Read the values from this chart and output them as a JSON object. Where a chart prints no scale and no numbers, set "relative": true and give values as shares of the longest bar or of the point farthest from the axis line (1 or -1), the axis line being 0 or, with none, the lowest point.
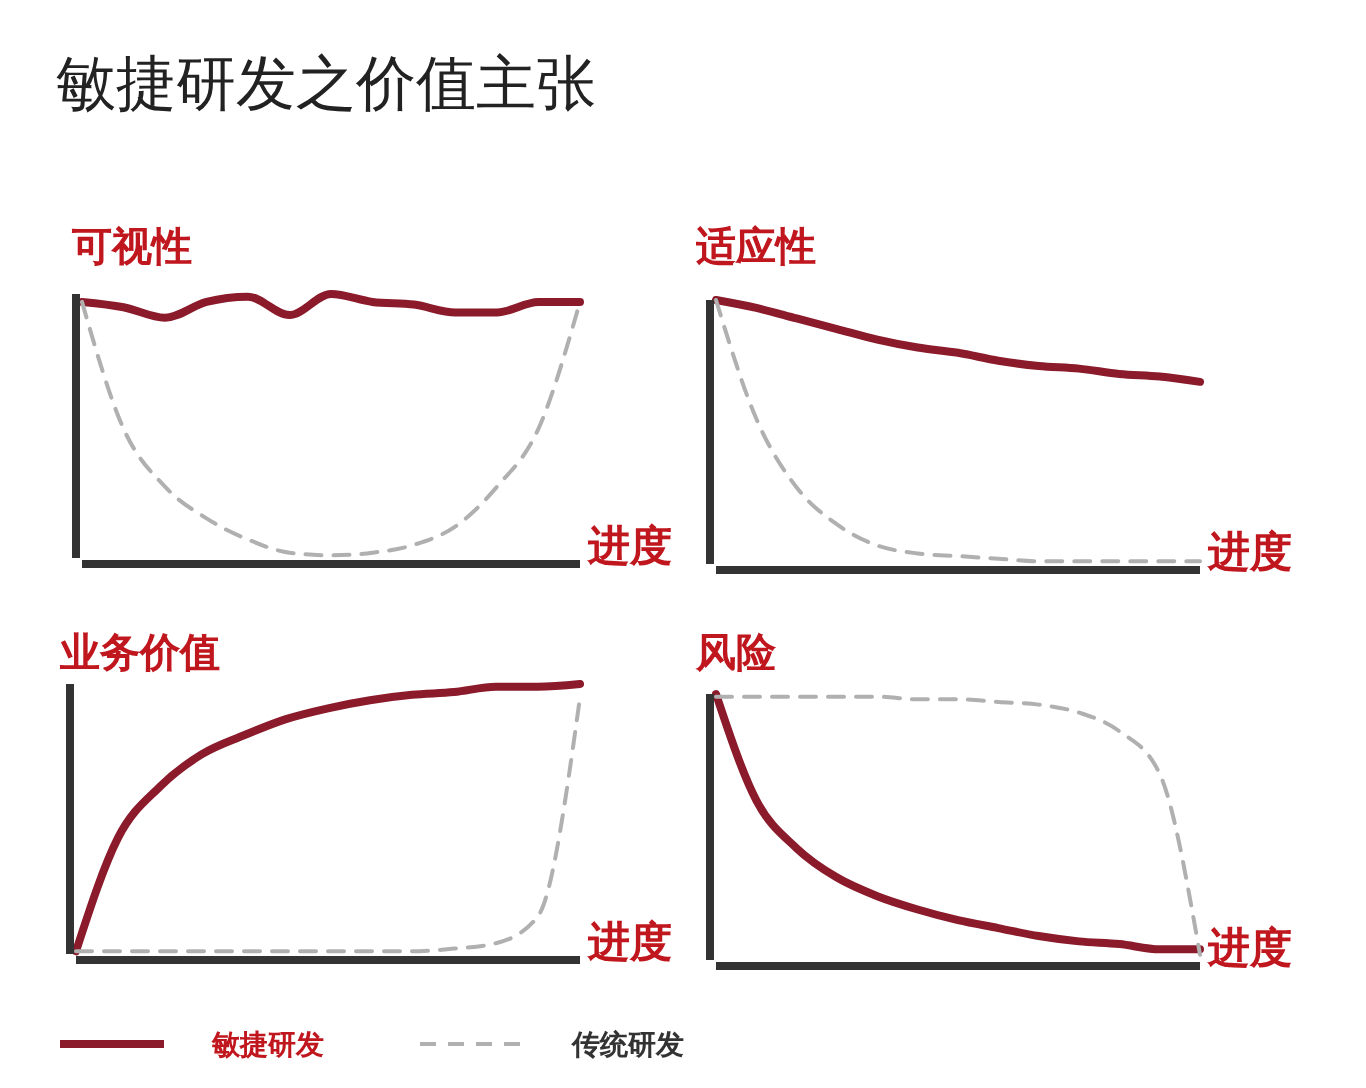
{
  "chart_data": [
    {
      "type": "other",
      "title": "敏捷研发之价值主张"
    },
    {
      "type": "line",
      "relative": true,
      "title": "可视性",
      "xlabel": "进度",
      "categories": [
        null,
        null,
        null,
        null,
        null,
        null,
        null,
        null,
        null,
        null,
        null,
        null,
        null
      ],
      "series": [
        {
          "color": "#8b1a2b",
          "values": [
            0.97,
            0.95,
            0.91,
            0.97,
            0.99,
            0.92,
            1.0,
            0.97,
            0.96,
            0.93,
            0.93,
            0.97,
            0.97
          ]
        },
        {
          "color": "#b0b0b0",
          "line_style": "dashed",
          "values": [
            0.97,
            0.49,
            0.27,
            0.15,
            0.07,
            0.02,
            0.01,
            0.02,
            0.05,
            0.12,
            0.27,
            0.49,
            0.97
          ]
        }
      ]
    },
    {
      "type": "line",
      "relative": true,
      "title": "适应性",
      "xlabel": "进度",
      "categories": [
        null,
        null,
        null,
        null,
        null,
        null,
        null,
        null,
        null,
        null,
        null,
        null,
        null
      ],
      "series": [
        {
          "color": "#8b1a2b",
          "values": [
            1.0,
            0.97,
            0.93,
            0.89,
            0.85,
            0.82,
            0.8,
            0.77,
            0.75,
            0.74,
            0.72,
            0.71,
            0.69
          ]
        },
        {
          "color": "#b0b0b0",
          "line_style": "dashed",
          "values": [
            1.0,
            0.55,
            0.29,
            0.15,
            0.07,
            0.04,
            0.03,
            0.02,
            0.01,
            0.01,
            0.01,
            0.01,
            0.01
          ]
        }
      ]
    },
    {
      "type": "line",
      "relative": true,
      "title": "业务价值",
      "xlabel": "进度",
      "legend": "bottom",
      "categories": [
        null,
        null,
        null,
        null,
        null,
        null,
        null,
        null,
        null,
        null,
        null,
        null,
        null
      ],
      "series": [
        {
          "name": "敏捷研发",
          "color": "#8b1a2b",
          "values": [
            0.01,
            0.43,
            0.62,
            0.74,
            0.81,
            0.87,
            0.91,
            0.94,
            0.96,
            0.97,
            0.99,
            0.99,
            1.0
          ]
        },
        {
          "name": "传统研发",
          "color": "#b0b0b0",
          "line_style": "dashed",
          "values": [
            0.01,
            0.01,
            0.01,
            0.01,
            0.01,
            0.01,
            0.01,
            0.01,
            0.01,
            0.02,
            0.04,
            0.14,
            0.95
          ]
        }
      ]
    },
    {
      "type": "line",
      "relative": true,
      "title": "风险",
      "xlabel": "进度",
      "categories": [
        null,
        null,
        null,
        null,
        null,
        null,
        null,
        null,
        null,
        null,
        null,
        null,
        null
      ],
      "series": [
        {
          "color": "#8b1a2b",
          "values": [
            1.0,
            0.6,
            0.42,
            0.31,
            0.24,
            0.19,
            0.15,
            0.12,
            0.09,
            0.07,
            0.06,
            0.04,
            0.04
          ]
        },
        {
          "color": "#b0b0b0",
          "line_style": "dashed",
          "values": [
            0.99,
            0.99,
            0.99,
            0.99,
            0.99,
            0.98,
            0.98,
            0.97,
            0.96,
            0.93,
            0.86,
            0.7,
            0.02
          ]
        }
      ]
    }
  ]
}
